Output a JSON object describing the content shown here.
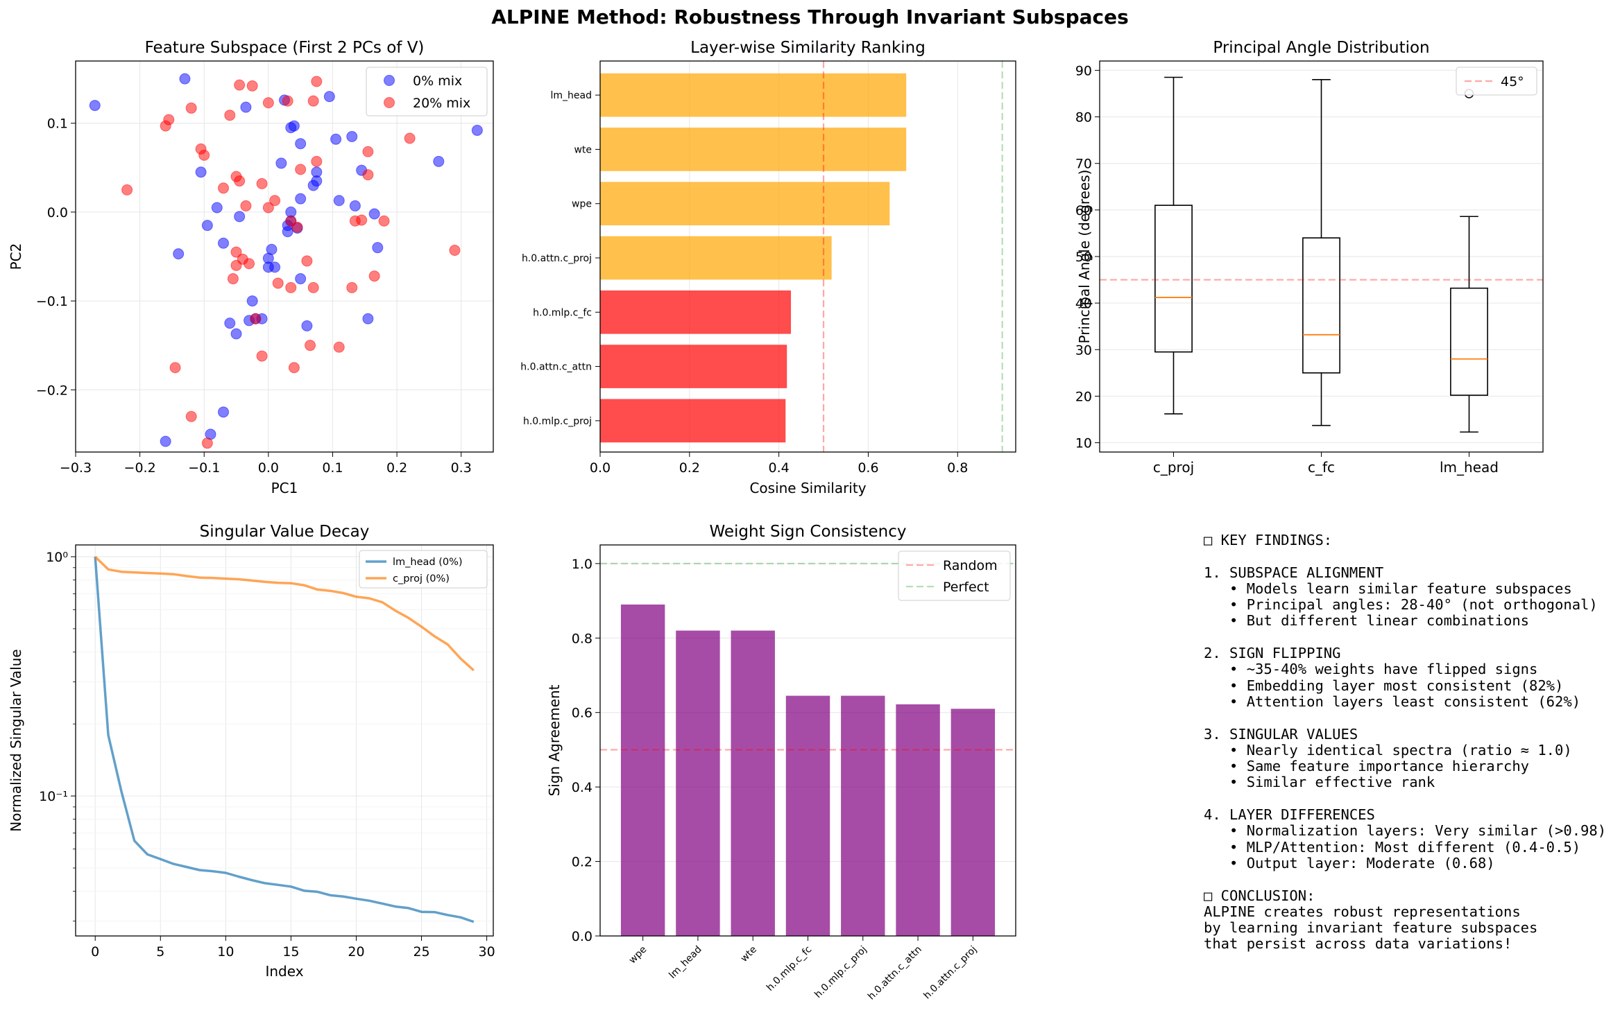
{
  "figure": {
    "title": "ALPINE Method: Robustness Through Invariant Subspaces"
  },
  "colors": {
    "blue": "#0000ff",
    "red": "#ff0000",
    "orange_bar": "#ffa500",
    "red_bar": "#ff0000",
    "purple": "#800080",
    "line_blue": "#1f77b4",
    "line_orange": "#ff7f0e",
    "median": "#ff7f0e",
    "green_ref": "#2ca02c"
  },
  "chart_data": [
    {
      "type": "scatter",
      "title": "Feature Subspace (First 2 PCs of V)",
      "xlabel": "PC1",
      "ylabel": "PC2",
      "xlim": [
        -0.3,
        0.35
      ],
      "ylim": [
        -0.27,
        0.17
      ],
      "xticks": [
        -0.3,
        -0.2,
        -0.1,
        0.0,
        0.1,
        0.2,
        0.3
      ],
      "xtick_labels": [
        "−0.3",
        "−0.2",
        "−0.1",
        "0.0",
        "0.1",
        "0.2",
        "0.3"
      ],
      "yticks": [
        -0.2,
        -0.1,
        0.0,
        0.1
      ],
      "ytick_labels": [
        "−0.2",
        "−0.1",
        "0.0",
        "0.1"
      ],
      "grid": true,
      "legend": "top-right",
      "series": [
        {
          "name": "0% mix",
          "color": "blue",
          "points": [
            [
              -0.27,
              0.12
            ],
            [
              -0.13,
              0.15
            ],
            [
              -0.105,
              0.045
            ],
            [
              -0.095,
              -0.015
            ],
            [
              -0.08,
              0.005
            ],
            [
              -0.07,
              -0.035
            ],
            [
              -0.14,
              -0.047
            ],
            [
              -0.06,
              -0.125
            ],
            [
              -0.05,
              -0.137
            ],
            [
              -0.045,
              -0.005
            ],
            [
              -0.035,
              0.118
            ],
            [
              -0.03,
              -0.122
            ],
            [
              -0.025,
              -0.1
            ],
            [
              -0.02,
              -0.12
            ],
            [
              -0.01,
              -0.12
            ],
            [
              0.0,
              -0.062
            ],
            [
              0.0,
              -0.052
            ],
            [
              0.005,
              -0.042
            ],
            [
              0.01,
              -0.062
            ],
            [
              0.02,
              0.055
            ],
            [
              0.025,
              0.126
            ],
            [
              0.03,
              -0.015
            ],
            [
              0.03,
              -0.022
            ],
            [
              0.035,
              0.095
            ],
            [
              0.035,
              0.0
            ],
            [
              0.035,
              -0.01
            ],
            [
              0.04,
              0.097
            ],
            [
              0.045,
              -0.018
            ],
            [
              0.05,
              0.015
            ],
            [
              0.05,
              0.077
            ],
            [
              0.05,
              -0.075
            ],
            [
              0.06,
              -0.128
            ],
            [
              0.07,
              0.03
            ],
            [
              0.075,
              0.035
            ],
            [
              0.075,
              0.045
            ],
            [
              0.095,
              0.13
            ],
            [
              0.105,
              0.082
            ],
            [
              0.11,
              0.013
            ],
            [
              0.13,
              0.085
            ],
            [
              0.135,
              0.007
            ],
            [
              0.145,
              0.047
            ],
            [
              0.155,
              -0.12
            ],
            [
              0.165,
              -0.002
            ],
            [
              0.17,
              -0.04
            ],
            [
              0.265,
              0.057
            ],
            [
              0.325,
              0.092
            ],
            [
              -0.07,
              -0.225
            ],
            [
              -0.09,
              -0.25
            ],
            [
              -0.16,
              -0.258
            ]
          ]
        },
        {
          "name": "20% mix",
          "color": "red",
          "points": [
            [
              -0.22,
              0.025
            ],
            [
              -0.16,
              0.097
            ],
            [
              -0.155,
              0.104
            ],
            [
              -0.12,
              0.117
            ],
            [
              -0.105,
              0.071
            ],
            [
              -0.1,
              0.064
            ],
            [
              -0.07,
              0.027
            ],
            [
              -0.06,
              0.109
            ],
            [
              -0.055,
              -0.075
            ],
            [
              -0.05,
              0.04
            ],
            [
              -0.05,
              -0.045
            ],
            [
              -0.05,
              -0.06
            ],
            [
              -0.045,
              0.035
            ],
            [
              -0.045,
              0.143
            ],
            [
              -0.04,
              -0.053
            ],
            [
              -0.035,
              0.007
            ],
            [
              -0.03,
              -0.058
            ],
            [
              -0.025,
              0.142
            ],
            [
              -0.02,
              -0.12
            ],
            [
              -0.01,
              -0.162
            ],
            [
              -0.01,
              0.032
            ],
            [
              0.0,
              0.123
            ],
            [
              0.0,
              0.005
            ],
            [
              0.01,
              0.013
            ],
            [
              0.015,
              -0.08
            ],
            [
              0.03,
              0.125
            ],
            [
              0.035,
              -0.01
            ],
            [
              0.035,
              -0.085
            ],
            [
              0.04,
              -0.175
            ],
            [
              0.045,
              -0.017
            ],
            [
              0.05,
              0.048
            ],
            [
              0.06,
              -0.055
            ],
            [
              0.065,
              -0.15
            ],
            [
              0.07,
              0.125
            ],
            [
              0.07,
              -0.085
            ],
            [
              0.075,
              0.147
            ],
            [
              0.075,
              0.057
            ],
            [
              0.11,
              -0.152
            ],
            [
              0.13,
              -0.085
            ],
            [
              0.135,
              -0.01
            ],
            [
              0.145,
              -0.009
            ],
            [
              0.155,
              0.068
            ],
            [
              0.155,
              0.042
            ],
            [
              0.165,
              -0.072
            ],
            [
              0.18,
              -0.01
            ],
            [
              0.22,
              0.083
            ],
            [
              0.29,
              -0.043
            ],
            [
              -0.145,
              -0.175
            ],
            [
              -0.12,
              -0.23
            ],
            [
              -0.095,
              -0.26
            ]
          ]
        }
      ]
    },
    {
      "type": "bar",
      "orientation": "horizontal",
      "title": "Layer-wise Similarity Ranking",
      "xlabel": "Cosine Similarity",
      "xlim": [
        0,
        0.93
      ],
      "xticks": [
        0.0,
        0.2,
        0.4,
        0.6,
        0.8
      ],
      "xtick_labels": [
        "0.0",
        "0.2",
        "0.4",
        "0.6",
        "0.8"
      ],
      "grid": true,
      "categories": [
        "lm_head",
        "wte",
        "wpe",
        "h.0.attn.c_proj",
        "h.0.mlp.c_fc",
        "h.0.attn.c_attn",
        "h.0.mlp.c_proj"
      ],
      "values": [
        0.685,
        0.685,
        0.648,
        0.518,
        0.427,
        0.418,
        0.415
      ],
      "bar_colors": [
        "orange_bar",
        "orange_bar",
        "orange_bar",
        "orange_bar",
        "red_bar",
        "red_bar",
        "red_bar"
      ],
      "reference_lines": [
        {
          "value": 0.5,
          "color": "red"
        },
        {
          "value": 0.9,
          "color": "green_ref"
        }
      ]
    },
    {
      "type": "box",
      "title": "Principal Angle Distribution",
      "ylabel": "Principal Angle (degrees)",
      "ylim": [
        8,
        92
      ],
      "yticks": [
        10,
        20,
        30,
        40,
        50,
        60,
        70,
        80,
        90
      ],
      "grid": true,
      "legend": "top-right",
      "categories": [
        "c_proj",
        "c_fc",
        "lm_head"
      ],
      "boxes": [
        {
          "whislo": 16.2,
          "q1": 29.5,
          "med": 41.2,
          "q3": 61.0,
          "whishi": 88.5,
          "fliers": []
        },
        {
          "whislo": 13.7,
          "q1": 25.0,
          "med": 33.2,
          "q3": 54.0,
          "whishi": 88.0,
          "fliers": []
        },
        {
          "whislo": 12.3,
          "q1": 20.2,
          "med": 28.0,
          "q3": 43.2,
          "whishi": 58.6,
          "fliers": [
            85.0
          ]
        }
      ],
      "reference_lines": [
        {
          "value": 45,
          "name": "45°",
          "color": "red"
        }
      ]
    },
    {
      "type": "line",
      "title": "Singular Value Decay",
      "xlabel": "Index",
      "ylabel": "Normalized Singular Value",
      "yscale": "log",
      "xlim": [
        -1.5,
        30.5
      ],
      "ylim": [
        0.026,
        1.12
      ],
      "xticks": [
        0,
        5,
        10,
        15,
        20,
        25,
        30
      ],
      "ytick_major": [
        0.1,
        1.0
      ],
      "ytick_labels": [
        "10⁻¹",
        "10⁰"
      ],
      "grid": true,
      "legend": "top-right",
      "x": [
        0,
        1,
        2,
        3,
        4,
        5,
        6,
        7,
        8,
        9,
        10,
        11,
        12,
        13,
        14,
        15,
        16,
        17,
        18,
        19,
        20,
        21,
        22,
        23,
        24,
        25,
        26,
        27,
        28,
        29
      ],
      "series": [
        {
          "name": "lm_head (0%)",
          "color": "line_blue",
          "values": [
            1.0,
            0.18,
            0.105,
            0.065,
            0.057,
            0.0545,
            0.052,
            0.0505,
            0.049,
            0.0485,
            0.0477,
            0.046,
            0.0445,
            0.0432,
            0.0425,
            0.0418,
            0.0402,
            0.0398,
            0.0385,
            0.038,
            0.0372,
            0.0365,
            0.0355,
            0.0345,
            0.034,
            0.0328,
            0.0327,
            0.0318,
            0.0311,
            0.0298
          ]
        },
        {
          "name": "c_proj (0%)",
          "color": "line_orange",
          "values": [
            1.0,
            0.885,
            0.865,
            0.86,
            0.855,
            0.85,
            0.845,
            0.83,
            0.818,
            0.815,
            0.81,
            0.805,
            0.795,
            0.785,
            0.778,
            0.775,
            0.76,
            0.73,
            0.72,
            0.705,
            0.68,
            0.67,
            0.645,
            0.595,
            0.555,
            0.51,
            0.465,
            0.43,
            0.375,
            0.335
          ]
        }
      ]
    },
    {
      "type": "bar",
      "title": "Weight Sign Consistency",
      "ylabel": "Sign Agreement",
      "ylim": [
        0,
        1.05
      ],
      "yticks": [
        0.0,
        0.2,
        0.4,
        0.6,
        0.8,
        1.0
      ],
      "ytick_labels": [
        "0.0",
        "0.2",
        "0.4",
        "0.6",
        "0.8",
        "1.0"
      ],
      "grid": true,
      "legend": "top-right",
      "categories": [
        "wpe",
        "lm_head",
        "wte",
        "h.0.mlp.c_fc",
        "h.0.mlp.c_proj",
        "h.0.attn.c_attn",
        "h.0.attn.c_proj"
      ],
      "values": [
        0.89,
        0.82,
        0.82,
        0.645,
        0.645,
        0.622,
        0.61
      ],
      "color": "purple",
      "reference_lines": [
        {
          "value": 0.5,
          "name": "Random",
          "color": "red"
        },
        {
          "value": 1.0,
          "name": "Perfect",
          "color": "green_ref"
        }
      ]
    }
  ],
  "findings": {
    "lines": [
      "□ KEY FINDINGS:",
      "",
      "1. SUBSPACE ALIGNMENT",
      "   • Models learn similar feature subspaces",
      "   • Principal angles: 28-40° (not orthogonal)",
      "   • But different linear combinations",
      "",
      "2. SIGN FLIPPING",
      "   • ~35-40% weights have flipped signs",
      "   • Embedding layer most consistent (82%)",
      "   • Attention layers least consistent (62%)",
      "",
      "3. SINGULAR VALUES",
      "   • Nearly identical spectra (ratio ≈ 1.0)",
      "   • Same feature importance hierarchy",
      "   • Similar effective rank",
      "",
      "4. LAYER DIFFERENCES",
      "   • Normalization layers: Very similar (>0.98)",
      "   • MLP/Attention: Most different (0.4-0.5)",
      "   • Output layer: Moderate (0.68)",
      "",
      "□ CONCLUSION:",
      "ALPINE creates robust representations",
      "by learning invariant feature subspaces",
      "that persist across data variations!"
    ]
  }
}
